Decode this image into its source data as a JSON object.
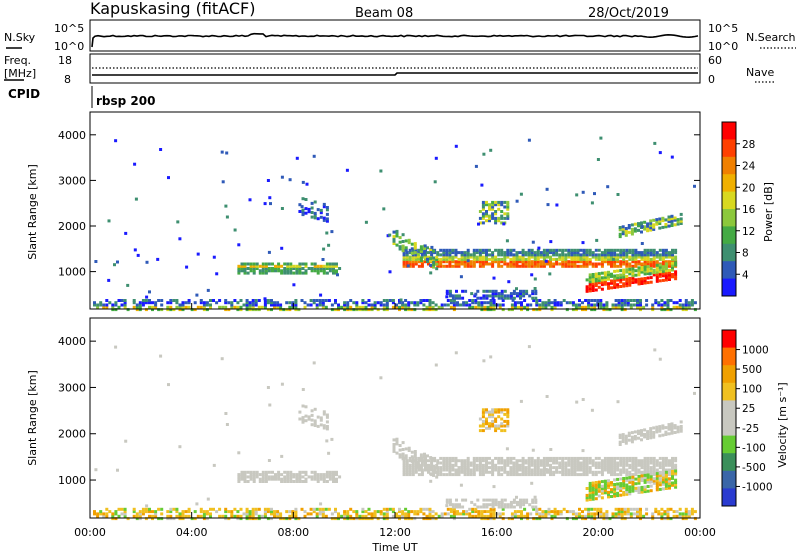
{
  "header": {
    "title": "Kapuskasing (fitACF)",
    "beam": "Beam 08",
    "date": "28/Oct/2019"
  },
  "status_panels": {
    "nsky_label": "N.Sky",
    "nsky_ticks": [
      "10^5",
      "10^0"
    ],
    "nsearch_label": "N.Search",
    "nsearch_ticks": [
      "10^5",
      "10^0"
    ],
    "freq_label_1": "Freq.",
    "freq_label_2": "[MHz]",
    "freq_ticks": [
      "18",
      "8"
    ],
    "nave_label": "Nave",
    "nave_ticks": [
      "60",
      "0"
    ],
    "cpid_label": "CPID",
    "cpid_value": "rbsp 200"
  },
  "chart_data": [
    {
      "type": "heatmap",
      "panel": "power",
      "xlabel": "",
      "ylabel": "Slant Range [km]",
      "y_ticks": [
        "1000",
        "2000",
        "3000",
        "4000"
      ],
      "ylim": [
        180,
        4500
      ],
      "xlim_hours": [
        0,
        24
      ],
      "colorbar": {
        "label": "Power [dB]",
        "ticks": [
          "28",
          "24",
          "20",
          "16",
          "12",
          "8",
          "4"
        ],
        "range": [
          0,
          32
        ],
        "colors": [
          "#1a1aff",
          "#2f5ab8",
          "#3e8f70",
          "#44aa44",
          "#8cc83c",
          "#d8d820",
          "#f0b000",
          "#f08000",
          "#ff4000",
          "#ff0000"
        ]
      }
    },
    {
      "type": "heatmap",
      "panel": "velocity",
      "xlabel": "Time UT",
      "ylabel": "Slant Range [km]",
      "y_ticks": [
        "1000",
        "2000",
        "3000",
        "4000"
      ],
      "ylim": [
        180,
        4500
      ],
      "x_ticks": [
        "00:00",
        "04:00",
        "08:00",
        "12:00",
        "16:00",
        "20:00",
        "00:00"
      ],
      "xlim_hours": [
        0,
        24
      ],
      "colorbar": {
        "label": "Velocity [m s⁻¹]",
        "ticks": [
          "1000",
          "500",
          "100",
          "25",
          "-25",
          "-100",
          "-500",
          "-1000"
        ],
        "range": [
          -1000,
          1000
        ],
        "colors": [
          "#2a3bd0",
          "#3a66a8",
          "#3a8f5a",
          "#66cc33",
          "#c8c8c0",
          "#c8c8c0",
          "#f0c020",
          "#f0a000",
          "#ff7000",
          "#ff0000"
        ]
      }
    }
  ]
}
